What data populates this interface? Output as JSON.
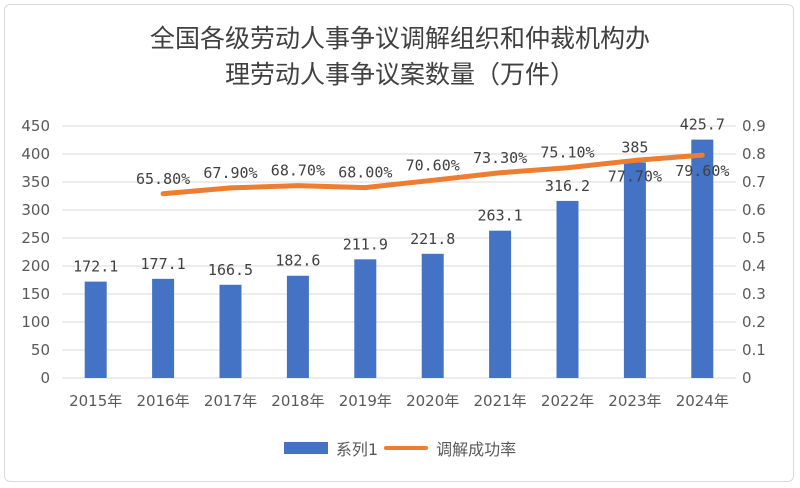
{
  "chart_data": {
    "type": "bar+line",
    "title": [
      "全国各级劳动人事争议调解组织和仲裁机构办",
      "理劳动人事争议案数量（万件）"
    ],
    "categories": [
      "2015年",
      "2016年",
      "2017年",
      "2018年",
      "2019年",
      "2020年",
      "2021年",
      "2022年",
      "2023年",
      "2024年"
    ],
    "series": [
      {
        "name": "系列1",
        "type": "bar",
        "axis": "left",
        "color": "#4472c4",
        "values": [
          172.1,
          177.1,
          166.5,
          182.6,
          211.9,
          221.8,
          263.1,
          316.2,
          385,
          425.7
        ],
        "labels": [
          "172.1",
          "177.1",
          "166.5",
          "182.6",
          "211.9",
          "221.8",
          "263.1",
          "316.2",
          "385",
          "425.7"
        ]
      },
      {
        "name": "调解成功率",
        "type": "line",
        "axis": "right",
        "color": "#ed7d31",
        "values": [
          null,
          0.658,
          0.679,
          0.687,
          0.68,
          0.706,
          0.733,
          0.751,
          0.777,
          0.796
        ],
        "labels": [
          null,
          "65.80%",
          "67.90%",
          "68.70%",
          "68.00%",
          "70.60%",
          "73.30%",
          "75.10%",
          "77.70%",
          "79.60%"
        ]
      }
    ],
    "y_left": {
      "min": 0,
      "max": 450,
      "step": 50,
      "ticks": [
        "0",
        "50",
        "100",
        "150",
        "200",
        "250",
        "300",
        "350",
        "400",
        "450"
      ]
    },
    "y_right": {
      "min": 0,
      "max": 0.9,
      "step": 0.1,
      "ticks": [
        "0",
        "0.1",
        "0.2",
        "0.3",
        "0.4",
        "0.5",
        "0.6",
        "0.7",
        "0.8",
        "0.9"
      ]
    },
    "grid": true,
    "legend": "bottom"
  }
}
